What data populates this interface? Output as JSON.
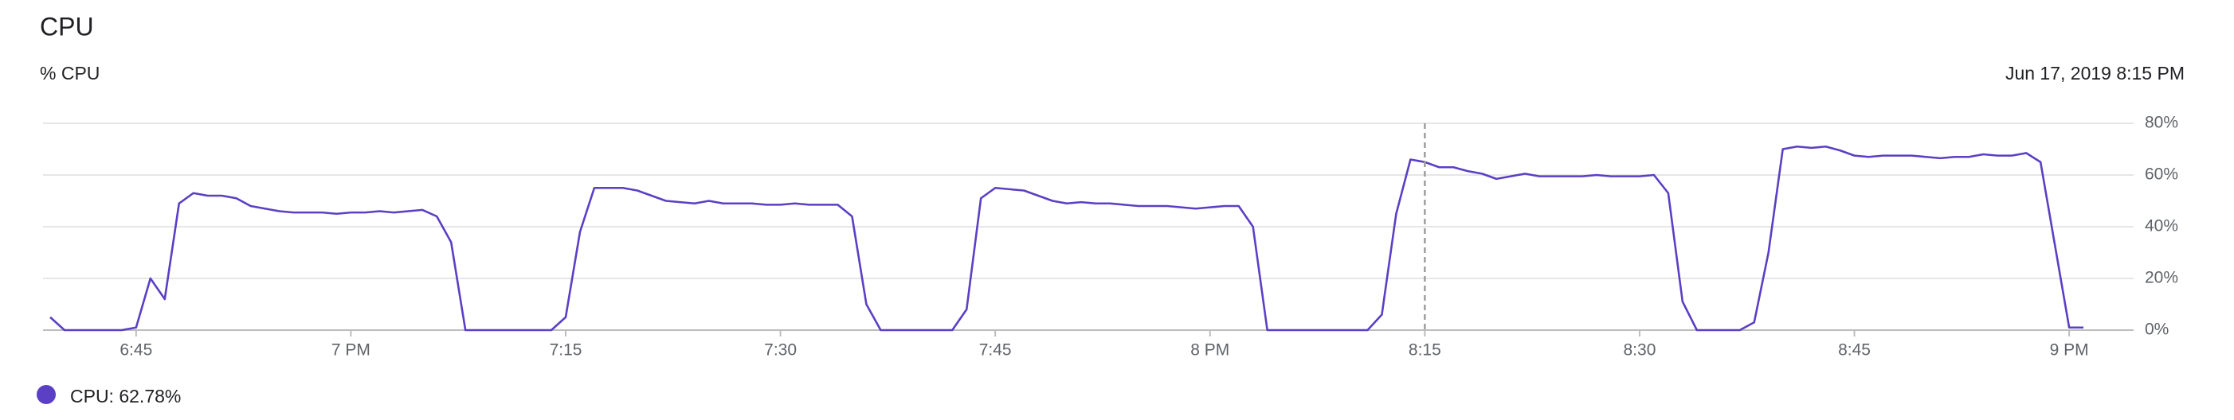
{
  "chart_data": {
    "type": "line",
    "title": "CPU",
    "subtitle": "% CPU",
    "x": [
      "18:39",
      "18:40",
      "18:41",
      "18:42",
      "18:43",
      "18:44",
      "18:45",
      "18:46",
      "18:47",
      "18:48",
      "18:49",
      "18:50",
      "18:51",
      "18:52",
      "18:53",
      "18:54",
      "18:55",
      "18:56",
      "18:57",
      "18:58",
      "18:59",
      "19:00",
      "19:01",
      "19:02",
      "19:03",
      "19:04",
      "19:05",
      "19:06",
      "19:07",
      "19:08",
      "19:09",
      "19:10",
      "19:11",
      "19:12",
      "19:13",
      "19:14",
      "19:15",
      "19:16",
      "19:17",
      "19:18",
      "19:19",
      "19:20",
      "19:21",
      "19:22",
      "19:23",
      "19:24",
      "19:25",
      "19:26",
      "19:27",
      "19:28",
      "19:29",
      "19:30",
      "19:31",
      "19:32",
      "19:33",
      "19:34",
      "19:35",
      "19:36",
      "19:37",
      "19:38",
      "19:39",
      "19:40",
      "19:41",
      "19:42",
      "19:43",
      "19:44",
      "19:45",
      "19:46",
      "19:47",
      "19:48",
      "19:49",
      "19:50",
      "19:51",
      "19:52",
      "19:53",
      "19:54",
      "19:55",
      "19:56",
      "19:57",
      "19:58",
      "19:59",
      "20:00",
      "20:01",
      "20:02",
      "20:03",
      "20:04",
      "20:05",
      "20:06",
      "20:07",
      "20:08",
      "20:09",
      "20:10",
      "20:11",
      "20:12",
      "20:13",
      "20:14",
      "20:15",
      "20:16",
      "20:17",
      "20:18",
      "20:19",
      "20:20",
      "20:21",
      "20:22",
      "20:23",
      "20:24",
      "20:25",
      "20:26",
      "20:27",
      "20:28",
      "20:29",
      "20:30",
      "20:31",
      "20:32",
      "20:33",
      "20:34",
      "20:35",
      "20:36",
      "20:37",
      "20:38",
      "20:39",
      "20:40",
      "20:41",
      "20:42",
      "20:43",
      "20:44",
      "20:45",
      "20:46",
      "20:47",
      "20:48",
      "20:49",
      "20:50",
      "20:51",
      "20:52",
      "20:53",
      "20:54",
      "20:55",
      "20:56",
      "20:57",
      "20:58",
      "20:59",
      "21:00",
      "21:01"
    ],
    "series": [
      {
        "color": "#5b3fc4",
        "values": [
          5,
          0,
          0,
          0,
          0,
          0,
          1,
          20,
          12,
          49,
          53,
          52,
          52,
          51,
          48,
          47,
          46,
          45.5,
          45.5,
          45.5,
          45,
          45.5,
          45.5,
          46,
          45.5,
          46,
          46.5,
          44,
          34,
          0,
          0,
          0,
          0,
          0,
          0,
          0,
          5,
          38,
          55,
          55,
          55,
          54,
          52,
          50,
          49.5,
          49,
          50,
          49,
          49,
          49,
          48.5,
          48.5,
          49,
          48.5,
          48.5,
          48.5,
          44,
          10,
          0,
          0,
          0,
          0,
          0,
          0,
          8,
          51,
          55,
          54.5,
          54,
          52,
          50,
          49,
          49.5,
          49,
          49,
          48.5,
          48,
          48,
          48,
          47.5,
          47,
          47.5,
          48,
          48,
          40,
          0,
          0,
          0,
          0,
          0,
          0,
          0,
          0,
          6,
          45,
          66,
          65,
          63,
          63,
          61.5,
          60.5,
          58.5,
          59.5,
          60.5,
          59.5,
          59.5,
          59.5,
          59.5,
          60,
          59.5,
          59.5,
          59.5,
          60,
          53,
          11,
          0,
          0,
          0,
          0,
          3,
          30,
          70,
          71,
          70.5,
          71,
          69.5,
          67.5,
          67,
          67.5,
          67.5,
          67.5,
          67,
          66.5,
          67,
          67,
          68,
          67.5,
          67.5,
          68.5,
          65,
          33,
          1,
          1
        ]
      }
    ],
    "xlim": [
      "18:38:30",
      "21:04:30"
    ],
    "xticks": [
      {
        "value": "18:45",
        "label": "6:45"
      },
      {
        "value": "19:00",
        "label": "7 PM"
      },
      {
        "value": "19:15",
        "label": "7:15"
      },
      {
        "value": "19:30",
        "label": "7:30"
      },
      {
        "value": "19:45",
        "label": "7:45"
      },
      {
        "value": "20:00",
        "label": "8 PM"
      },
      {
        "value": "20:15",
        "label": "8:15"
      },
      {
        "value": "20:30",
        "label": "8:30"
      },
      {
        "value": "20:45",
        "label": "8:45"
      },
      {
        "value": "21:00",
        "label": "9 PM"
      }
    ],
    "ylim": [
      0,
      80
    ],
    "yticks": [
      {
        "value": 0,
        "label": "0%"
      },
      {
        "value": 20,
        "label": "20%"
      },
      {
        "value": 40,
        "label": "40%"
      },
      {
        "value": 60,
        "label": "60%"
      },
      {
        "value": 80,
        "label": "80%"
      }
    ],
    "grid": true,
    "hover": {
      "x": "20:15",
      "label": "Jun 17, 2019 8:15 PM",
      "value": 62.78,
      "value_label": "CPU: 62.78%"
    }
  }
}
